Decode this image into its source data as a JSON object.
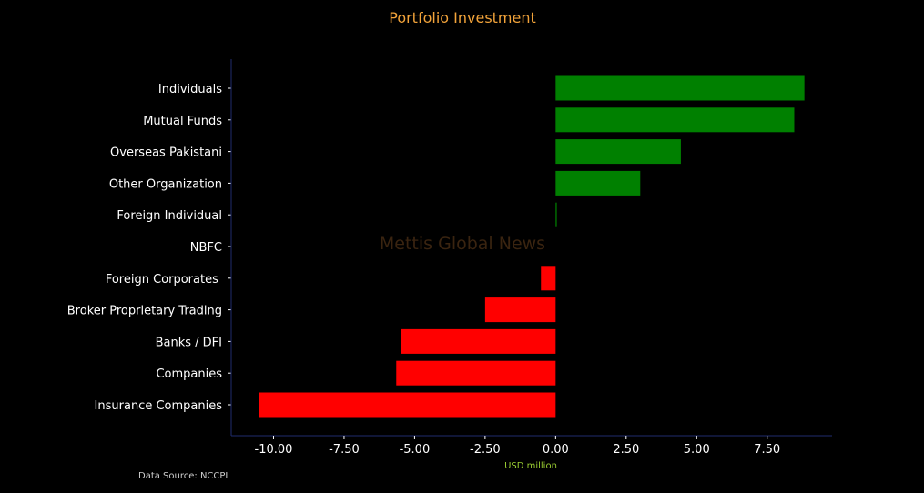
{
  "chart_data": {
    "type": "bar",
    "orientation": "horizontal",
    "title": "Portfolio Investment",
    "xlabel": "USD million",
    "ylabel": "",
    "source": "Data Source: NCCPL",
    "watermark": "Mettis Global News",
    "categories": [
      "Individuals",
      "Mutual Funds",
      "Overseas Pakistani",
      "Other Organization",
      "Foreign Individual",
      "NBFC",
      "Foreign Corporates ",
      "Broker Proprietary Trading",
      "Banks / DFI",
      "Companies",
      "Insurance Companies"
    ],
    "values": [
      8.82,
      8.46,
      4.44,
      3.0,
      0.04,
      0.0,
      -0.52,
      -2.5,
      -5.48,
      -5.65,
      -10.5
    ],
    "xlim": [
      -11.5,
      9.8
    ],
    "xticks": [
      "-10.00",
      "-7.50",
      "-5.00",
      "-2.50",
      "0.00",
      "2.50",
      "5.00",
      "7.50"
    ],
    "xtick_values": [
      -10,
      -7.5,
      -5,
      -2.5,
      0,
      2.5,
      5,
      7.5
    ],
    "grid": false,
    "colors": {
      "positive": "#008000",
      "negative": "#ff0000",
      "background": "#000000",
      "title": "#f2a33a",
      "text": "#ffffff",
      "xlabel": "#9acd32",
      "source": "#cccccc",
      "watermark": "#3a2410",
      "axis": "#1f2c6e"
    }
  }
}
